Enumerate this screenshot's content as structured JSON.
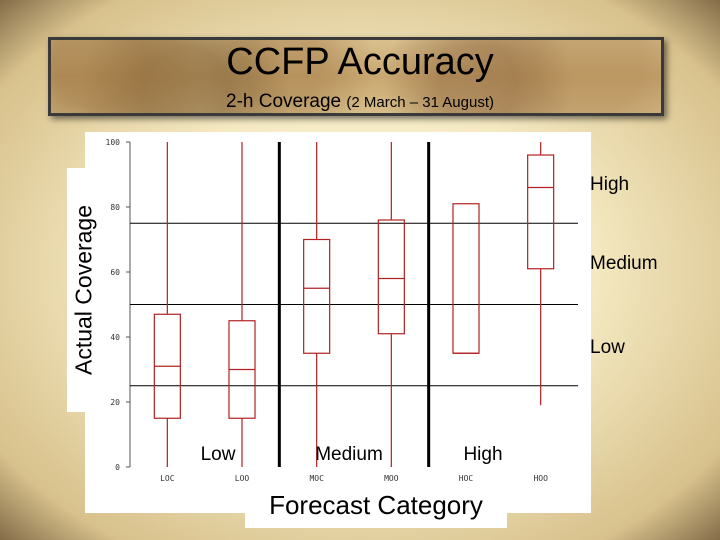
{
  "title": "CCFP Accuracy",
  "subtitle_main": "2-h Coverage",
  "subtitle_paren": "(2 March – 31 August)",
  "chart_data": {
    "type": "box",
    "ylabel": "Actual Coverage",
    "xlabel": "Forecast Category",
    "ylim": [
      0,
      100
    ],
    "y_ticks": [
      0,
      20,
      40,
      60,
      80,
      100
    ],
    "categories": [
      "LOC",
      "LOO",
      "MOC",
      "MOO",
      "HOC",
      "HOO"
    ],
    "groups": [
      {
        "label": "Low",
        "categories": [
          "LOC",
          "LOO"
        ]
      },
      {
        "label": "Medium",
        "categories": [
          "MOC",
          "MOO"
        ]
      },
      {
        "label": "High",
        "categories": [
          "HOC",
          "HOO"
        ]
      }
    ],
    "reference_bands": [
      {
        "label": "High",
        "lower": 75
      },
      {
        "label": "Medium",
        "lower": 50
      },
      {
        "label": "Low",
        "lower": 25
      }
    ],
    "boxes": [
      {
        "category": "LOC",
        "min": 0,
        "q1": 15,
        "median": 31,
        "q3": 47,
        "max": 100
      },
      {
        "category": "LOO",
        "min": 0,
        "q1": 15,
        "median": 30,
        "q3": 45,
        "max": 100
      },
      {
        "category": "MOC",
        "min": 0,
        "q1": 35,
        "median": 55,
        "q3": 70,
        "max": 100
      },
      {
        "category": "MOO",
        "min": 0,
        "q1": 41,
        "median": 58,
        "q3": 76,
        "max": 100
      },
      {
        "category": "HOC",
        "min": 35,
        "q1": 35,
        "median": 35,
        "q3": 81,
        "max": 81
      },
      {
        "category": "HOO",
        "min": 19,
        "q1": 61,
        "median": 86,
        "q3": 96,
        "max": 100
      }
    ],
    "colors": {
      "box": "#b22222",
      "reference": "#000000",
      "separator": "#000000"
    }
  }
}
